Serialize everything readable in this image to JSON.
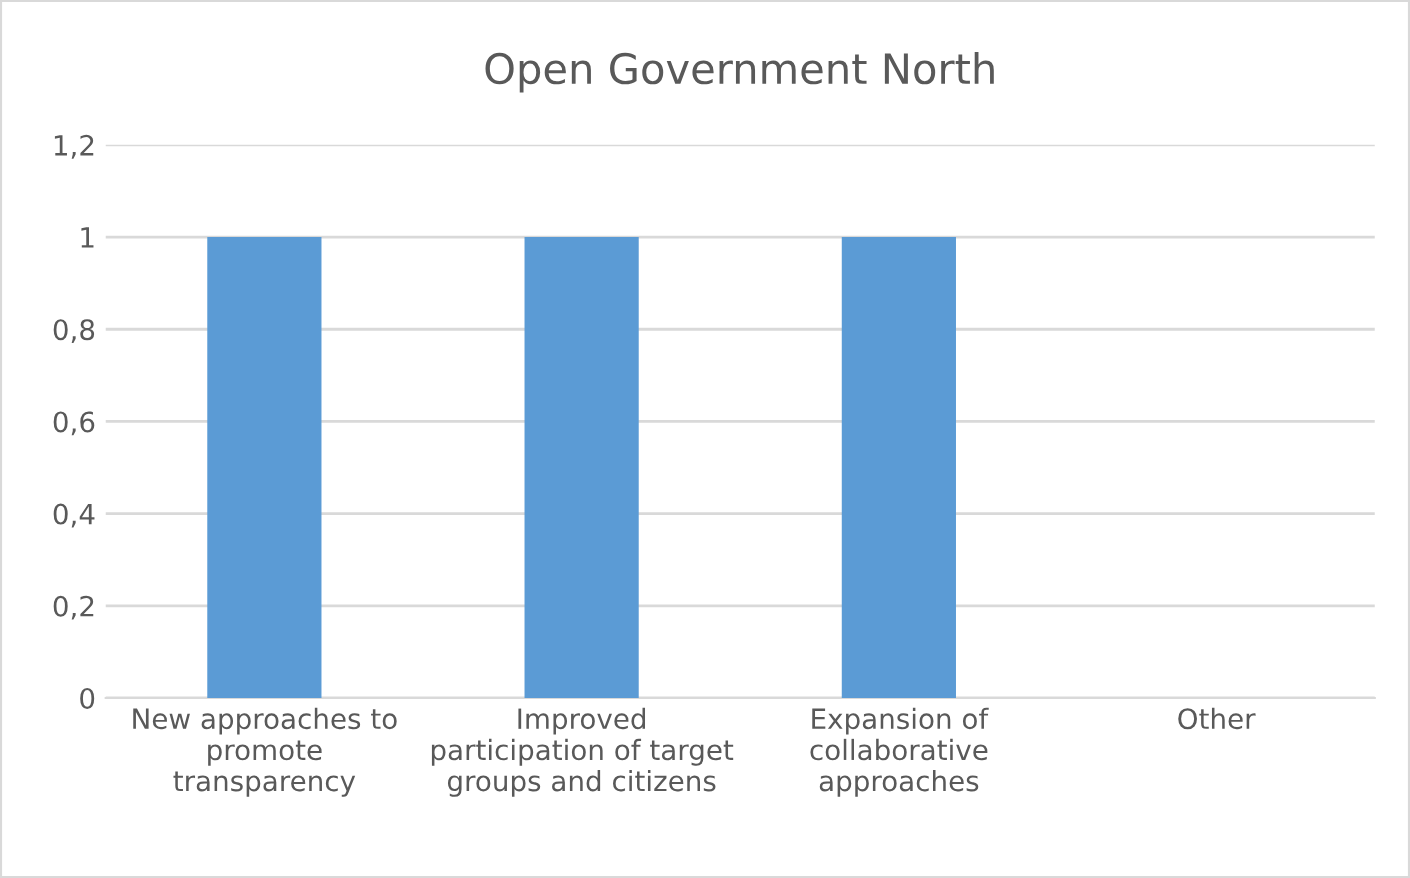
{
  "chart_data": {
    "type": "bar",
    "title": "Open Government North",
    "categories": [
      "New approaches to\npromote\ntransparency",
      "Improved\nparticipation of target\ngroups and citizens",
      "Expansion of\ncollaborative\napproaches",
      "Other"
    ],
    "values": [
      1,
      1,
      1,
      0
    ],
    "color": "#5b9bd5",
    "ylim": [
      0,
      1.2
    ],
    "yticks": [
      {
        "value": 0,
        "label": "0"
      },
      {
        "value": 0.2,
        "label": "0,2"
      },
      {
        "value": 0.4,
        "label": "0,4"
      },
      {
        "value": 0.6,
        "label": "0,6"
      },
      {
        "value": 0.8,
        "label": "0,8"
      },
      {
        "value": 1,
        "label": "1"
      },
      {
        "value": 1.2,
        "label": "1,2"
      }
    ],
    "grid": "y"
  }
}
